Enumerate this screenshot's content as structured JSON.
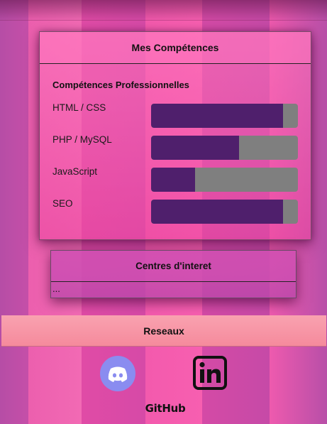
{
  "skills": {
    "title": "Mes Compétences",
    "subtitle": "Compétences Professionnelles",
    "items": [
      {
        "label": "HTML / CSS",
        "level": 0.9
      },
      {
        "label": "PHP / MySQL",
        "level": 0.6
      },
      {
        "label": "JavaScript",
        "level": 0.3
      },
      {
        "label": "SEO",
        "level": 0.9
      }
    ]
  },
  "interests": {
    "title": "Centres d'interet",
    "content": "..."
  },
  "networks": {
    "title": "Reseaux",
    "links": [
      {
        "icon": "discord-icon"
      },
      {
        "icon": "linkedin-icon"
      },
      {
        "label": "GitHub",
        "icon": "github-logo"
      }
    ]
  },
  "colors": {
    "bar_fill": "#4f1f6c",
    "bar_track": "#7f7f7f",
    "networks_bar": "#f79aab",
    "discord": "#8a8cf0"
  }
}
